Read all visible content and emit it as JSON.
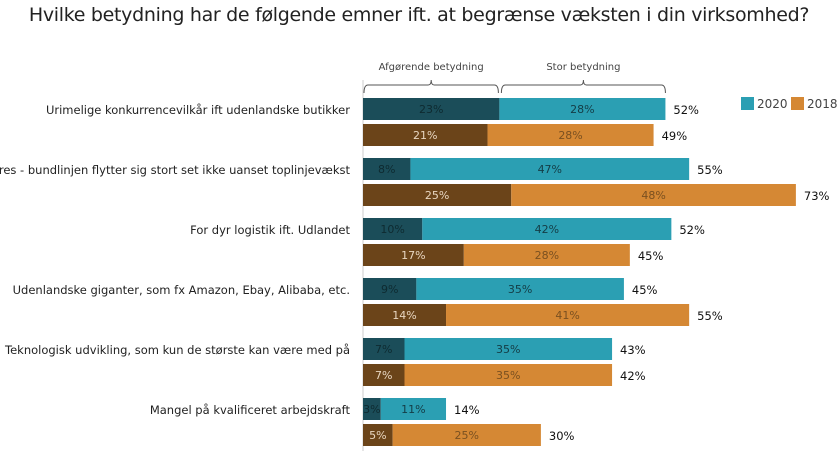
{
  "chart_data": {
    "type": "bar",
    "orientation": "horizontal",
    "stacked": true,
    "title": "Hvilke betydning har de følgende emner ift. at begrænse væksten i din virksomhed?",
    "segment_labels": [
      "Afgørende betydning",
      "Stor betydning"
    ],
    "legend": [
      "2020",
      "2018"
    ],
    "legend_position": "top-right",
    "categories": [
      "Urimelige konkurrencevilkår ift udenlandske butikker",
      "Prispres - bundlinjen flytter sig stort set ikke uanset toplinjevækst",
      "For dyr logistik ift. Udlandet",
      "Udenlandske giganter, som fx Amazon, Ebay, Alibaba, etc.",
      "Teknologisk udvikling, som kun de største kan være med på",
      "Mangel på kvalificeret arbejdskraft"
    ],
    "series": [
      {
        "name": "2020",
        "afgoerende": [
          23,
          8,
          10,
          9,
          7,
          3
        ],
        "stor": [
          28,
          47,
          42,
          35,
          35,
          11
        ],
        "total": [
          52,
          55,
          52,
          45,
          43,
          14
        ]
      },
      {
        "name": "2018",
        "afgoerende": [
          21,
          25,
          17,
          14,
          7,
          5
        ],
        "stor": [
          28,
          48,
          28,
          41,
          35,
          25
        ],
        "total": [
          49,
          73,
          45,
          55,
          42,
          30
        ]
      }
    ],
    "colors": {
      "2020_dark": "#1b4d59",
      "2020_light": "#2b9fb3",
      "2018_dark": "#6b4419",
      "2018_light": "#d58834"
    },
    "grid": false
  }
}
